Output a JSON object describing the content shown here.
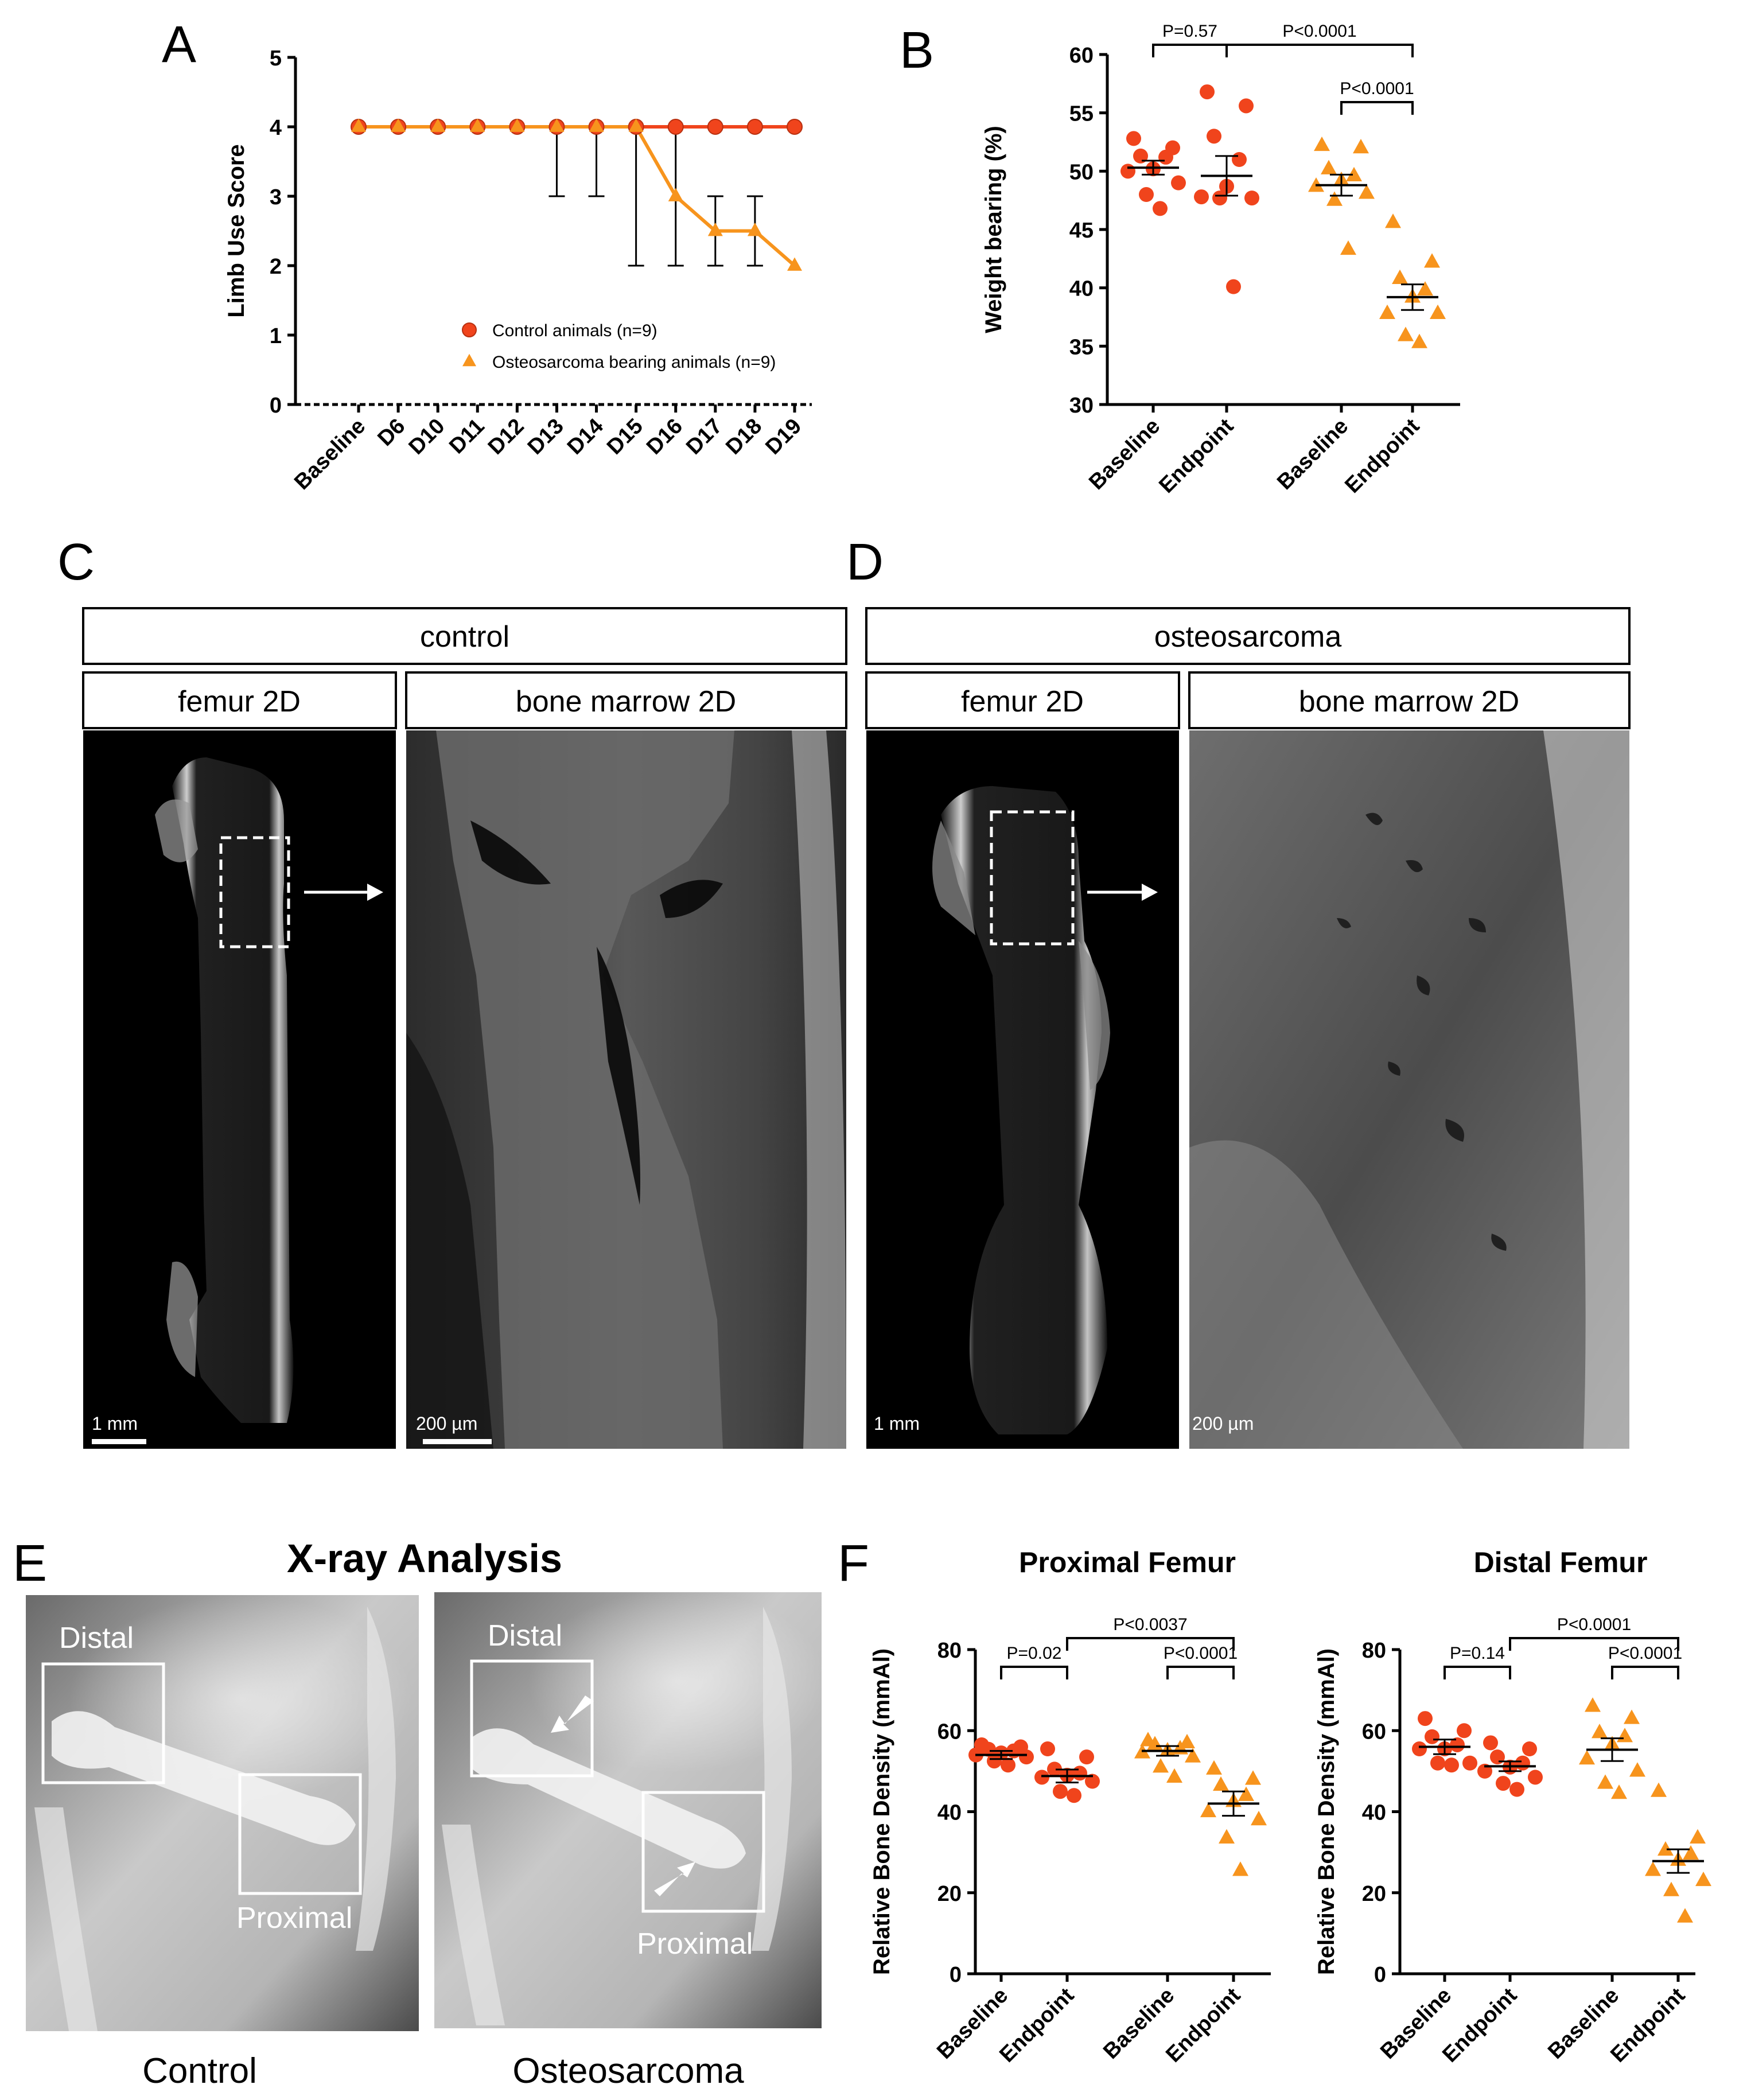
{
  "panels": {
    "a": "A",
    "b": "B",
    "c": "C",
    "d": "D",
    "e": "E",
    "f": "F"
  },
  "colors": {
    "control": "#f0441c",
    "osteo": "#f7941d",
    "axis": "#000000"
  },
  "chart_data": [
    {
      "id": "A",
      "type": "line",
      "ylabel": "Limb Use Score",
      "ylim": [
        0,
        5
      ],
      "yticks": [
        "0",
        "1",
        "2",
        "3",
        "4",
        "5"
      ],
      "categories": [
        "Baseline",
        "D6",
        "D10",
        "D11",
        "D12",
        "D13",
        "D14",
        "D15",
        "D16",
        "D17",
        "D18",
        "D19"
      ],
      "legend_position": "lower-right",
      "series": [
        {
          "name": "Control animals (n=9)",
          "marker": "circle",
          "values": [
            4,
            4,
            4,
            4,
            4,
            4,
            4,
            4,
            4,
            4,
            4,
            4
          ]
        },
        {
          "name": "Osteosarcoma bearing animals (n=9)",
          "marker": "triangle",
          "values": [
            4,
            4,
            4,
            4,
            4,
            4,
            4,
            4,
            3,
            2.5,
            2.5,
            2
          ],
          "error_low": [
            4,
            4,
            4,
            4,
            4,
            3,
            3,
            2,
            2,
            2,
            2,
            2
          ],
          "error_high": [
            4,
            4,
            4,
            4,
            4,
            4,
            4,
            4,
            4,
            3,
            3,
            2
          ]
        }
      ]
    },
    {
      "id": "B",
      "type": "scatter",
      "ylabel": "Weight bearing (%)",
      "ylim": [
        30,
        60
      ],
      "yticks": [
        "30",
        "35",
        "40",
        "45",
        "50",
        "55",
        "60"
      ],
      "categories": [
        "Baseline",
        "Endpoint",
        "Baseline",
        "Endpoint"
      ],
      "groups": [
        {
          "series": "control",
          "mean": 50.3,
          "sem": 0.6,
          "points": [
            52.8,
            52.0,
            51.3,
            51.2,
            50.2,
            50.0,
            49.0,
            48.0,
            46.8
          ]
        },
        {
          "series": "control",
          "mean": 49.6,
          "sem": 1.7,
          "points": [
            56.8,
            55.6,
            53.0,
            51.0,
            48.7,
            47.8,
            47.7,
            47.7,
            40.1
          ]
        },
        {
          "series": "osteo",
          "mean": 48.8,
          "sem": 0.9,
          "points": [
            52.2,
            52.0,
            50.2,
            49.6,
            49.2,
            48.7,
            48.1,
            47.5,
            43.3
          ]
        },
        {
          "series": "osteo",
          "mean": 39.2,
          "sem": 1.1,
          "points": [
            45.6,
            42.2,
            40.8,
            39.8,
            39.2,
            37.8,
            37.8,
            35.9,
            35.3
          ]
        }
      ],
      "comparisons": [
        {
          "from": 0,
          "to": 1,
          "label": "P=0.57",
          "level": 0
        },
        {
          "from": 1,
          "to": 3,
          "label": "P<0.0001",
          "level": 0
        },
        {
          "from": 2,
          "to": 3,
          "label": "P<0.0001",
          "level": 1
        }
      ]
    },
    {
      "id": "F-proximal",
      "type": "scatter",
      "title": "Proximal Femur",
      "ylabel": "Relative Bone Density (mmAl)",
      "ylim": [
        0,
        80
      ],
      "yticks": [
        "0",
        "20",
        "40",
        "60",
        "80"
      ],
      "categories": [
        "Baseline",
        "Endpoint",
        "Baseline",
        "Endpoint"
      ],
      "groups": [
        {
          "series": "control",
          "mean": 54,
          "sem": 1.0,
          "points": [
            56.5,
            56,
            55.4,
            55,
            54.5,
            54,
            53.5,
            52.5,
            51.5
          ]
        },
        {
          "series": "control",
          "mean": 48.8,
          "sem": 1.6,
          "points": [
            55.5,
            53.5,
            50.5,
            49.5,
            49,
            48.5,
            47.5,
            45,
            44
          ]
        },
        {
          "series": "osteo",
          "mean": 55,
          "sem": 1.2,
          "points": [
            57.5,
            57,
            56.5,
            55.5,
            55,
            54.5,
            53.5,
            51,
            48.5
          ]
        },
        {
          "series": "osteo",
          "mean": 42,
          "sem": 3.0,
          "points": [
            50.5,
            48,
            46.5,
            44,
            42.5,
            40,
            38,
            33.5,
            25.5
          ]
        }
      ],
      "comparisons": [
        {
          "from": 0,
          "to": 1,
          "label": "P=0.02",
          "level": 0
        },
        {
          "from": 1,
          "to": 3,
          "label": "P<0.0037",
          "level": 1
        },
        {
          "from": 2,
          "to": 3,
          "label": "P<0.0001",
          "level": 0
        }
      ]
    },
    {
      "id": "F-distal",
      "type": "scatter",
      "title": "Distal Femur",
      "ylabel": "Relative Bone Density (mmAl)",
      "ylim": [
        0,
        80
      ],
      "yticks": [
        "0",
        "20",
        "40",
        "60",
        "80"
      ],
      "categories": [
        "Baseline",
        "Endpoint",
        "Baseline",
        "Endpoint"
      ],
      "groups": [
        {
          "series": "control",
          "mean": 56,
          "sem": 1.8,
          "points": [
            63,
            60,
            58.5,
            56.5,
            55.5,
            55.5,
            52,
            52,
            51.5
          ]
        },
        {
          "series": "control",
          "mean": 51.2,
          "sem": 1.2,
          "points": [
            57,
            55.5,
            53.5,
            52,
            51,
            50,
            48.5,
            47,
            45.5
          ]
        },
        {
          "series": "osteo",
          "mean": 55.3,
          "sem": 2.8,
          "points": [
            66,
            63,
            59.5,
            58.5,
            56.5,
            53,
            50,
            47,
            44.5
          ]
        },
        {
          "series": "osteo",
          "mean": 27.8,
          "sem": 2.9,
          "points": [
            45,
            33.5,
            30.5,
            29.5,
            28,
            25.5,
            23,
            20.5,
            14
          ]
        }
      ],
      "comparisons": [
        {
          "from": 0,
          "to": 1,
          "label": "P=0.14",
          "level": 0
        },
        {
          "from": 1,
          "to": 3,
          "label": "P<0.0001",
          "level": 1
        },
        {
          "from": 2,
          "to": 3,
          "label": "P<0.0001",
          "level": 0
        }
      ]
    }
  ],
  "microct": {
    "control": {
      "header": "control",
      "left": "femur 2D",
      "right": "bone marrow 2D",
      "scale_left": "1 mm",
      "scale_right": "200 µm"
    },
    "osteosarcoma": {
      "header": "osteosarcoma",
      "left": "femur 2D",
      "right": "bone marrow 2D",
      "scale_left": "1 mm",
      "scale_right": "200 µm"
    }
  },
  "xray": {
    "title": "X-ray Analysis",
    "control": {
      "caption": "Control",
      "distal": "Distal",
      "proximal": "Proximal"
    },
    "osteosarcoma": {
      "caption": "Osteosarcoma",
      "distal": "Distal",
      "proximal": "Proximal"
    }
  }
}
